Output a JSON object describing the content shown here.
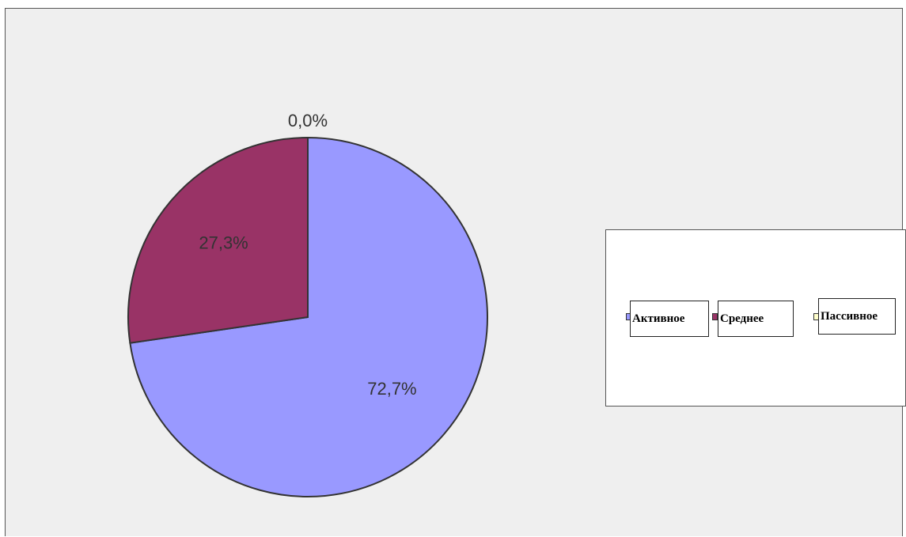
{
  "page_text": "",
  "chart_data": {
    "type": "pie",
    "categories": [
      "Активное",
      "Среднее",
      "Пассивное"
    ],
    "values": [
      72.7,
      27.3,
      0.0
    ],
    "labels": [
      "72,7%",
      "27,3%",
      "0,0%"
    ],
    "colors": [
      "#9999ff",
      "#993366",
      "#ffffcc"
    ],
    "legend": [
      "Активное",
      "Среднее",
      "Пассивное"
    ],
    "legend_position": "right"
  }
}
